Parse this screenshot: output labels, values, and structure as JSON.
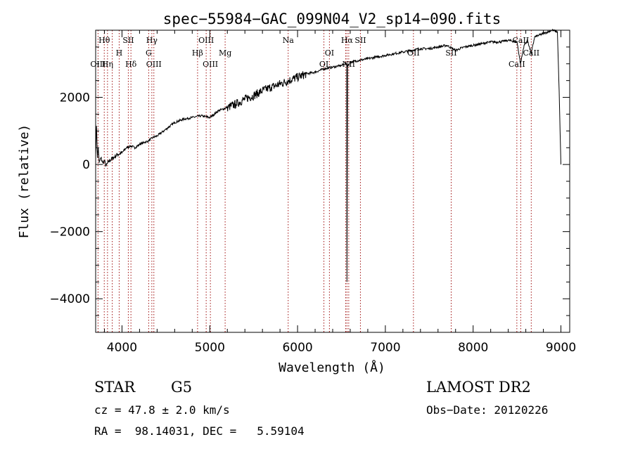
{
  "chart_data": {
    "type": "line",
    "title": "spec−55984−GAC_099N04_V2_sp14−090.fits",
    "xlabel": "Wavelength (Å)",
    "ylabel": "Flux (relative)",
    "xlim": [
      3700,
      9100
    ],
    "ylim": [
      -5000,
      4000
    ],
    "x_ticks": [
      4000,
      5000,
      6000,
      7000,
      8000,
      9000
    ],
    "y_ticks": [
      -4000,
      -2000,
      0,
      2000
    ],
    "x_tick_labels": [
      "4000",
      "5000",
      "6000",
      "7000",
      "8000",
      "9000"
    ],
    "y_tick_labels": [
      "−4000",
      "−2000",
      "0",
      "2000"
    ],
    "grid": false,
    "line_color": "#000000",
    "marker_color": "#a01010",
    "series": [
      {
        "x": [
          3700,
          3710,
          3720,
          3730,
          3740,
          3760,
          3780,
          3800,
          3820,
          3850,
          3900,
          3950,
          4000,
          4050,
          4100,
          4150,
          4200,
          4250,
          4300,
          4350,
          4400,
          4500,
          4600,
          4700,
          4800,
          4900,
          5000,
          5100,
          5200,
          5300,
          5400,
          5500,
          5600,
          5700,
          5800,
          5900,
          6000,
          6100,
          6200,
          6300,
          6400,
          6500,
          6540,
          6560,
          6563,
          6566,
          6570,
          6590,
          6600,
          6700,
          6800,
          6900,
          7000,
          7100,
          7200,
          7300,
          7400,
          7500,
          7600,
          7700,
          7800,
          7900,
          8000,
          8100,
          8200,
          8300,
          8400,
          8500,
          8540,
          8580,
          8620,
          8662,
          8700,
          8800,
          8900,
          8960,
          8980,
          8990,
          9000
        ],
        "y": [
          300,
          1150,
          200,
          500,
          50,
          200,
          50,
          100,
          -50,
          100,
          200,
          300,
          350,
          500,
          550,
          500,
          600,
          650,
          700,
          800,
          850,
          1050,
          1250,
          1350,
          1400,
          1450,
          1400,
          1600,
          1700,
          1800,
          1950,
          2050,
          2200,
          2300,
          2400,
          2500,
          2600,
          2700,
          2750,
          2850,
          2900,
          2950,
          3000,
          3000,
          -3500,
          -600,
          2950,
          3000,
          3050,
          3100,
          3150,
          3200,
          3250,
          3300,
          3350,
          3400,
          3450,
          3450,
          3500,
          3550,
          3400,
          3500,
          3550,
          3600,
          3650,
          3650,
          3700,
          3650,
          3000,
          3550,
          3700,
          3300,
          3800,
          3900,
          4000,
          3950,
          2200,
          1000,
          0
        ]
      }
    ],
    "line_markers": [
      {
        "label": "Hθ",
        "x": 3798,
        "row": 1
      },
      {
        "label": "OIII",
        "x": 3727,
        "row": 3
      },
      {
        "label": "Hη",
        "x": 3835,
        "row": 3
      },
      {
        "label": "H",
        "x": 3968,
        "row": 2
      },
      {
        "label": "SII",
        "x": 4072,
        "row": 1
      },
      {
        "label": "Hδ",
        "x": 4102,
        "row": 3
      },
      {
        "label": "Hγ",
        "x": 4340,
        "row": 1
      },
      {
        "label": "G",
        "x": 4304,
        "row": 2
      },
      {
        "label": "OIII",
        "x": 4363,
        "row": 3
      },
      {
        "label": "OIII",
        "x": 4959,
        "row": 1
      },
      {
        "label": "Hβ",
        "x": 4861,
        "row": 2
      },
      {
        "label": "OIII",
        "x": 5007,
        "row": 3
      },
      {
        "label": "Mg",
        "x": 5175,
        "row": 2
      },
      {
        "label": "Na",
        "x": 5893,
        "row": 1
      },
      {
        "label": "OI",
        "x": 6363,
        "row": 2
      },
      {
        "label": "OI",
        "x": 6300,
        "row": 3
      },
      {
        "label": "Hα",
        "x": 6563,
        "row": 1
      },
      {
        "label": "SII",
        "x": 6716,
        "row": 1
      },
      {
        "label": "NII",
        "x": 6583,
        "row": 3
      },
      {
        "label": "OII",
        "x": 7320,
        "row": 2
      },
      {
        "label": "SII",
        "x": 7750,
        "row": 2
      },
      {
        "label": "CaII",
        "x": 8542,
        "row": 1
      },
      {
        "label": "CaII",
        "x": 8498,
        "row": 3
      },
      {
        "label": "CaII",
        "x": 8662,
        "row": 2
      }
    ],
    "marker_lines_x": [
      3727,
      3798,
      3835,
      3889,
      3968,
      4072,
      4102,
      4304,
      4340,
      4363,
      4861,
      4959,
      5007,
      5175,
      5893,
      6300,
      6363,
      6548,
      6563,
      6583,
      6716,
      7320,
      7750,
      8498,
      8542,
      8662
    ]
  },
  "info": {
    "class": "STAR",
    "subclass": "G5",
    "survey": "LAMOST DR2",
    "cz": "cz = 47.8 ± 2.0 km/s",
    "obsdate": "Obs−Date: 20120226",
    "coords": "RA =  98.14031, DEC =   5.59104"
  }
}
